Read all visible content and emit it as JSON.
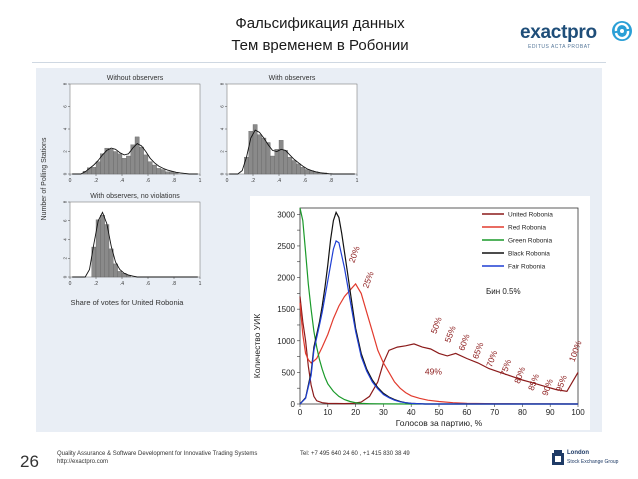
{
  "slide": {
    "title_line1": "Фальсификация данных",
    "title_line2": "Тем временем в Робонии",
    "page_number": "26"
  },
  "logo": {
    "wordmark": "exactpro",
    "tagline": "EDITUS ACTA PROBAT",
    "icon": "exactpro-swirl-icon",
    "color": "#1f4e79"
  },
  "footer": {
    "left_line1": "Quality Assurance & Software Development  for Innovative Trading Systems",
    "left_line2": "http://exactpro.com",
    "contact": "Tel: +7 495 640 24 60 ,  +1 415 830 38 49",
    "partner_line1": "London",
    "partner_line2": "Stock Exchange Group"
  },
  "left_panels": {
    "y_label": "Number of Polling Stations",
    "x_label": "Share of votes for United Robonia",
    "panels": [
      {
        "title": "Without observers",
        "yticks": [
          "0",
          "2",
          "4",
          "6",
          "8"
        ],
        "xticks": [
          "0",
          ".2",
          ".4",
          ".6",
          ".8",
          "1"
        ],
        "bars": [
          0,
          0,
          0,
          0.25,
          0.55,
          0.6,
          1.1,
          1.8,
          2.3,
          2.2,
          2.0,
          1.8,
          1.4,
          1.6,
          2.6,
          3.3,
          2.4,
          1.7,
          1.1,
          0.8,
          0.5,
          0.4,
          0.2,
          0.2,
          0.1,
          0,
          0,
          0,
          0,
          0
        ],
        "density": [
          0,
          0,
          0,
          0.2,
          0.5,
          0.8,
          1.2,
          1.7,
          2.1,
          2.3,
          2.2,
          1.9,
          1.7,
          1.8,
          2.3,
          2.7,
          2.5,
          2.0,
          1.4,
          1.0,
          0.7,
          0.5,
          0.35,
          0.25,
          0.15,
          0.1,
          0.05,
          0,
          0,
          0
        ]
      },
      {
        "title": "With observers",
        "yticks": [
          "0",
          "2",
          "4",
          "6",
          "8"
        ],
        "xticks": [
          "0",
          ".2",
          ".4",
          ".6",
          ".8",
          "1"
        ],
        "bars": [
          0,
          0,
          0,
          0,
          1.5,
          3.8,
          4.4,
          3.5,
          3.2,
          2.8,
          1.6,
          2.2,
          3.0,
          2.1,
          1.5,
          1.2,
          0.9,
          0.6,
          0.4,
          0.3,
          0.2,
          0.1,
          0.1,
          0,
          0,
          0,
          0,
          0,
          0,
          0
        ],
        "density": [
          0,
          0,
          0,
          0.3,
          1.5,
          3.2,
          3.9,
          3.7,
          3.2,
          2.6,
          2.1,
          2.0,
          2.2,
          2.1,
          1.7,
          1.3,
          1.0,
          0.7,
          0.45,
          0.3,
          0.2,
          0.12,
          0.06,
          0.03,
          0,
          0,
          0,
          0,
          0,
          0
        ]
      },
      {
        "title": "With observers, no violations",
        "yticks": [
          "0",
          "2",
          "4",
          "6",
          "8"
        ],
        "xticks": [
          "0",
          ".2",
          ".4",
          ".6",
          ".8",
          "1"
        ],
        "bars": [
          0,
          0,
          0,
          0,
          0,
          3.2,
          6.1,
          6.6,
          5.6,
          3.0,
          1.4,
          0.6,
          0.4,
          0.2,
          0,
          0,
          0,
          0,
          0,
          0,
          0,
          0,
          0,
          0,
          0,
          0,
          0,
          0,
          0,
          0
        ],
        "density": [
          0,
          0,
          0,
          0,
          0.8,
          3.5,
          6.0,
          6.9,
          5.7,
          3.3,
          1.6,
          0.8,
          0.4,
          0.2,
          0.1,
          0,
          0,
          0,
          0,
          0,
          0,
          0,
          0,
          0,
          0,
          0,
          0,
          0,
          0,
          0
        ]
      }
    ]
  },
  "chart_data": {
    "type": "line",
    "xlabel": "Голосов за партию, %",
    "ylabel": "Количество УИК",
    "xlim": [
      0,
      100
    ],
    "ylim": [
      0,
      3100
    ],
    "xticks": [
      0,
      10,
      20,
      30,
      40,
      50,
      60,
      70,
      80,
      90,
      100
    ],
    "yticks": [
      0,
      250,
      500,
      750,
      1000,
      1250,
      1500,
      1750,
      2000,
      2250,
      2500,
      2750,
      3000
    ],
    "bin_label": "Бин 0.5%",
    "legend_position": "top-right",
    "annotations": [
      {
        "text": "20%",
        "x": 20.5,
        "y": 2350,
        "rotate": -70
      },
      {
        "text": "25%",
        "x": 25.5,
        "y": 1950,
        "rotate": -70
      },
      {
        "text": "50%",
        "x": 50,
        "y": 1230,
        "rotate": -70
      },
      {
        "text": "55%",
        "x": 55,
        "y": 1090,
        "rotate": -70
      },
      {
        "text": "60%",
        "x": 60,
        "y": 960,
        "rotate": -70
      },
      {
        "text": "65%",
        "x": 65,
        "y": 830,
        "rotate": -70
      },
      {
        "text": "70%",
        "x": 70,
        "y": 700,
        "rotate": -70
      },
      {
        "text": "75%",
        "x": 75,
        "y": 560,
        "rotate": -70
      },
      {
        "text": "80%",
        "x": 80,
        "y": 440,
        "rotate": -70
      },
      {
        "text": "85%",
        "x": 85,
        "y": 330,
        "rotate": -70
      },
      {
        "text": "90%",
        "x": 90,
        "y": 250,
        "rotate": -70
      },
      {
        "text": "95%",
        "x": 95,
        "y": 310,
        "rotate": -70
      },
      {
        "text": "100%",
        "x": 100,
        "y": 820,
        "rotate": -70
      },
      {
        "text": "49%",
        "x": 48,
        "y": 470,
        "rotate": 0
      }
    ],
    "series": [
      {
        "name": "United Robonia",
        "color": "#8b1a1a",
        "x": [
          0,
          1,
          2,
          3,
          4,
          5,
          6,
          8,
          10,
          13,
          16,
          19,
          22,
          25,
          28,
          30,
          32,
          35,
          38,
          41,
          44,
          47,
          50,
          53,
          56,
          60,
          64,
          68,
          72,
          76,
          80,
          84,
          88,
          92,
          96,
          100
        ],
        "y": [
          1700,
          1300,
          1000,
          600,
          300,
          120,
          50,
          20,
          10,
          8,
          6,
          10,
          30,
          120,
          350,
          650,
          850,
          900,
          920,
          950,
          900,
          870,
          800,
          760,
          800,
          720,
          650,
          560,
          500,
          440,
          380,
          330,
          280,
          230,
          200,
          500
        ]
      },
      {
        "name": "Red Robonia",
        "color": "#e23b2e",
        "x": [
          0,
          1,
          2,
          3,
          4,
          5,
          6,
          8,
          10,
          12,
          14,
          16,
          18,
          20,
          22,
          24,
          26,
          28,
          30,
          32,
          34,
          36,
          38,
          40,
          43,
          46,
          50,
          55,
          60,
          70,
          80,
          90,
          100
        ],
        "y": [
          1600,
          1100,
          800,
          700,
          650,
          680,
          720,
          900,
          1100,
          1350,
          1550,
          1700,
          1800,
          1900,
          1750,
          1450,
          1150,
          850,
          650,
          500,
          350,
          250,
          180,
          130,
          90,
          60,
          40,
          20,
          10,
          5,
          3,
          2,
          0
        ]
      },
      {
        "name": "Green Robonia",
        "color": "#1a9a2a",
        "x": [
          0,
          1,
          2,
          3,
          4,
          5,
          6,
          7,
          8,
          9,
          10,
          12,
          14,
          16,
          18,
          20,
          22,
          25,
          30,
          40,
          50,
          100
        ],
        "y": [
          3100,
          2900,
          2400,
          1900,
          1500,
          1150,
          900,
          700,
          550,
          420,
          320,
          200,
          120,
          70,
          40,
          20,
          10,
          5,
          2,
          0,
          0,
          0
        ]
      },
      {
        "name": "Black Robonia",
        "color": "#111111",
        "x": [
          0,
          2,
          4,
          5,
          6,
          7,
          8,
          9,
          10,
          11,
          12,
          13,
          14,
          15,
          16,
          17,
          18,
          19,
          20,
          21,
          22,
          24,
          26,
          28,
          30,
          32,
          34,
          36,
          38,
          40,
          45,
          50,
          100
        ],
        "y": [
          0,
          100,
          500,
          900,
          1100,
          1300,
          1550,
          1850,
          2200,
          2600,
          2900,
          3030,
          2950,
          2700,
          2400,
          2100,
          1800,
          1500,
          1200,
          1000,
          800,
          550,
          380,
          260,
          170,
          110,
          70,
          40,
          20,
          10,
          0,
          0,
          0
        ]
      },
      {
        "name": "Fair Robonia",
        "color": "#1f3fd4",
        "x": [
          0,
          2,
          4,
          5,
          6,
          7,
          8,
          9,
          10,
          11,
          12,
          13,
          14,
          15,
          16,
          17,
          18,
          19,
          20,
          21,
          22,
          24,
          26,
          28,
          30,
          32,
          34,
          36,
          38,
          40,
          45,
          50,
          100
        ],
        "y": [
          0,
          90,
          450,
          850,
          1050,
          1250,
          1450,
          1700,
          1950,
          2200,
          2450,
          2580,
          2550,
          2350,
          2150,
          1900,
          1650,
          1400,
          1150,
          950,
          750,
          520,
          350,
          240,
          150,
          100,
          60,
          35,
          20,
          10,
          0,
          0,
          0
        ]
      }
    ]
  }
}
